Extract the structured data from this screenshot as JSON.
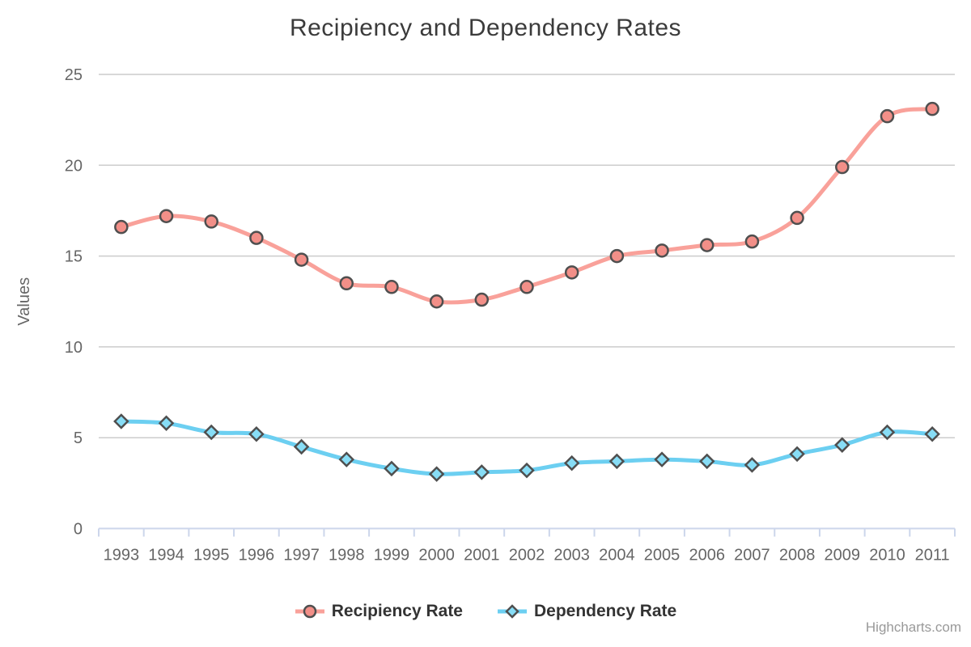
{
  "chart": {
    "title": "Recipiency and Dependency Rates",
    "credits": "Highcharts.com"
  },
  "chart_data": {
    "type": "line",
    "subtype": "spline-with-markers",
    "title": "Recipiency and Dependency Rates",
    "xlabel": "",
    "ylabel": "Values",
    "ylim": [
      0,
      25
    ],
    "ytick_interval": 5,
    "yticks": [
      0,
      5,
      10,
      15,
      20,
      25
    ],
    "grid": true,
    "legend_position": "bottom",
    "categories": [
      "1993",
      "1994",
      "1995",
      "1996",
      "1997",
      "1998",
      "1999",
      "2000",
      "2001",
      "2002",
      "2003",
      "2004",
      "2005",
      "2006",
      "2007",
      "2008",
      "2009",
      "2010",
      "2011"
    ],
    "series": [
      {
        "name": "Recipiency Rate",
        "marker": "circle",
        "line_color": "#F9A19A",
        "marker_fill": "#F28F88",
        "values": [
          16.6,
          17.2,
          16.9,
          16.0,
          14.8,
          13.5,
          13.3,
          12.5,
          12.6,
          13.3,
          14.1,
          15.0,
          15.3,
          15.6,
          15.8,
          17.1,
          19.9,
          22.7,
          23.1
        ]
      },
      {
        "name": "Dependency Rate",
        "marker": "diamond",
        "line_color": "#6CCFF1",
        "marker_fill": "#87DDF6",
        "values": [
          5.9,
          5.8,
          5.3,
          5.2,
          4.5,
          3.8,
          3.3,
          3.0,
          3.1,
          3.2,
          3.6,
          3.7,
          3.8,
          3.7,
          3.5,
          4.1,
          4.6,
          5.3,
          5.2
        ]
      }
    ]
  },
  "colors": {
    "title": "#3b3b3b",
    "axis_label": "#666666",
    "axis_title": "#666666",
    "gridline": "#cccccc",
    "axis_line": "#ccd6eb",
    "tick_mark": "#ccd6eb",
    "marker_stroke": "#4f4f4f",
    "legend_text": "#333333",
    "credits": "#999999",
    "background": "#ffffff"
  }
}
